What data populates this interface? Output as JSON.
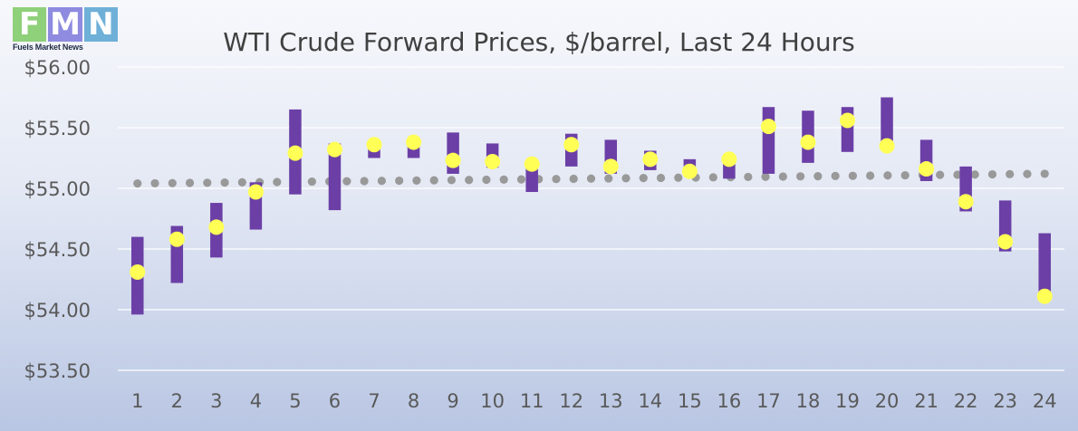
{
  "logo": {
    "letters": [
      "F",
      "M",
      "N"
    ],
    "tagline": "Fuels Market News",
    "colors": [
      "#8fd07a",
      "#8e8be0",
      "#6fb0d8"
    ]
  },
  "chart_data": {
    "type": "bar",
    "title": "WTI Crude Forward Prices, $/barrel, Last 24 Hours",
    "xlabel": "",
    "ylabel": "",
    "ylim": [
      53.5,
      56.0
    ],
    "yticks": [
      53.5,
      54.0,
      54.5,
      55.0,
      55.5,
      56.0
    ],
    "ytick_labels": [
      "$53.50",
      "$54.00",
      "$54.50",
      "$55.00",
      "$55.50",
      "$56.00"
    ],
    "categories": [
      "1",
      "2",
      "3",
      "4",
      "5",
      "6",
      "7",
      "8",
      "9",
      "10",
      "11",
      "12",
      "13",
      "14",
      "15",
      "16",
      "17",
      "18",
      "19",
      "20",
      "21",
      "22",
      "23",
      "24"
    ],
    "series": [
      {
        "type": "range-bar",
        "low": [
          53.96,
          54.22,
          54.43,
          54.66,
          54.95,
          54.82,
          55.25,
          55.25,
          55.12,
          55.17,
          54.97,
          55.18,
          55.12,
          55.15,
          55.12,
          55.08,
          55.12,
          55.21,
          55.3,
          55.33,
          55.06,
          54.81,
          54.48,
          54.1
        ],
        "high": [
          54.6,
          54.69,
          54.88,
          55.05,
          55.65,
          55.37,
          55.37,
          55.38,
          55.46,
          55.37,
          55.22,
          55.45,
          55.4,
          55.31,
          55.24,
          55.26,
          55.67,
          55.64,
          55.67,
          55.75,
          55.4,
          55.18,
          54.9,
          54.63
        ],
        "color": "#6b3fa6"
      },
      {
        "type": "point",
        "values": [
          54.31,
          54.58,
          54.68,
          54.97,
          55.29,
          55.32,
          55.36,
          55.38,
          55.23,
          55.22,
          55.2,
          55.36,
          55.18,
          55.24,
          55.14,
          55.24,
          55.51,
          55.38,
          55.56,
          55.35,
          55.16,
          54.89,
          54.56,
          54.11
        ],
        "color": "#ffff55"
      },
      {
        "type": "dotted-trend",
        "start": 55.04,
        "end": 55.12,
        "color": "#999999"
      }
    ],
    "grid": true,
    "legend": "none",
    "colors": {
      "gridline": "#ffffff",
      "axis_text": "#595959",
      "title_text": "#404040"
    }
  }
}
